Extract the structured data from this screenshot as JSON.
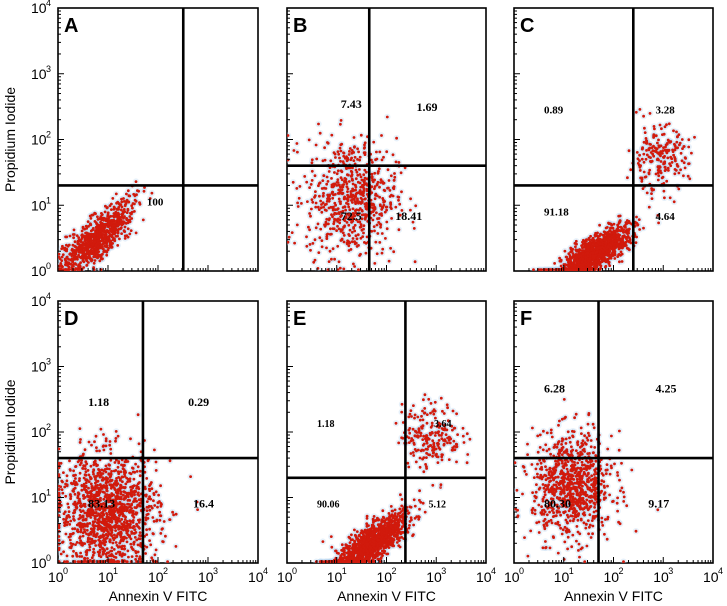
{
  "chart_data": {
    "type": "scatter",
    "figure_note": "Flow cytometry dot plots (2 x 3 grid)",
    "x_axis": {
      "label": "Annexin V FITC",
      "scale": "log",
      "range": [
        1,
        10000
      ],
      "tick_labels": [
        {
          "base": "10",
          "exp": "0"
        },
        {
          "base": "10",
          "exp": "1"
        },
        {
          "base": "10",
          "exp": "2"
        },
        {
          "base": "10",
          "exp": "3"
        },
        {
          "base": "10",
          "exp": "4"
        }
      ]
    },
    "y_axis": {
      "label": "Propidium Iodide",
      "scale": "log",
      "range": [
        1,
        10000
      ],
      "tick_labels": [
        {
          "base": "10",
          "exp": "0"
        },
        {
          "base": "10",
          "exp": "1"
        },
        {
          "base": "10",
          "exp": "2"
        },
        {
          "base": "10",
          "exp": "3"
        },
        {
          "base": "10",
          "exp": "4"
        }
      ]
    },
    "colors": {
      "dots": "#d11a0c",
      "halo": "#b9d7f0",
      "gate": "#000000"
    },
    "panels": [
      {
        "letter": "A",
        "gate_x": 320,
        "gate_y": 20,
        "quadrant_labels": [
          {
            "quadrant": "lower-left",
            "text": "100",
            "x": 60,
            "y": 10,
            "size": 11
          }
        ],
        "clusters": [
          {
            "cx": 6,
            "cy": 3,
            "spread_x": 0.35,
            "spread_y": 0.3,
            "count": 900,
            "shape": "diagonal"
          }
        ]
      },
      {
        "letter": "B",
        "gate_x": 45,
        "gate_y": 40,
        "quadrant_labels": [
          {
            "quadrant": "upper-left",
            "text": "7.43",
            "x": 12,
            "y": 300,
            "size": 12
          },
          {
            "quadrant": "upper-right",
            "text": "1.69",
            "x": 400,
            "y": 270,
            "size": 12
          },
          {
            "quadrant": "lower-left",
            "text": "72.5",
            "x": 12,
            "y": 6,
            "size": 12
          },
          {
            "quadrant": "lower-right",
            "text": "18.41",
            "x": 150,
            "y": 6,
            "size": 12
          }
        ],
        "clusters": [
          {
            "cx": 20,
            "cy": 13,
            "spread_x": 0.45,
            "spread_y": 0.45,
            "count": 700,
            "shape": "round"
          }
        ]
      },
      {
        "letter": "C",
        "gate_x": 250,
        "gate_y": 20,
        "quadrant_labels": [
          {
            "quadrant": "upper-left",
            "text": "0.89",
            "x": 4,
            "y": 250,
            "size": 11
          },
          {
            "quadrant": "upper-right",
            "text": "3.28",
            "x": 700,
            "y": 250,
            "size": 11
          },
          {
            "quadrant": "lower-left",
            "text": "91.18",
            "x": 4,
            "y": 7,
            "size": 11
          },
          {
            "quadrant": "lower-right",
            "text": "4.64",
            "x": 700,
            "y": 6,
            "size": 11
          }
        ],
        "clusters": [
          {
            "cx": 40,
            "cy": 1.8,
            "spread_x": 0.35,
            "spread_y": 0.22,
            "count": 1300,
            "shape": "diagonal"
          },
          {
            "cx": 800,
            "cy": 50,
            "spread_x": 0.3,
            "spread_y": 0.25,
            "count": 220,
            "shape": "round"
          }
        ]
      },
      {
        "letter": "D",
        "gate_x": 50,
        "gate_y": 40,
        "quadrant_labels": [
          {
            "quadrant": "upper-left",
            "text": "1.18",
            "x": 4,
            "y": 250,
            "size": 12
          },
          {
            "quadrant": "upper-right",
            "text": "0.29",
            "x": 400,
            "y": 250,
            "size": 12
          },
          {
            "quadrant": "lower-left",
            "text": "83.13",
            "x": 4,
            "y": 7,
            "size": 12
          },
          {
            "quadrant": "lower-right",
            "text": "16.4",
            "x": 500,
            "y": 7,
            "size": 12
          }
        ],
        "clusters": [
          {
            "cx": 10,
            "cy": 6,
            "spread_x": 0.5,
            "spread_y": 0.45,
            "count": 1400,
            "shape": "round"
          }
        ]
      },
      {
        "letter": "E",
        "gate_x": 240,
        "gate_y": 20,
        "quadrant_labels": [
          {
            "quadrant": "upper-left",
            "text": "1.18",
            "x": 4,
            "y": 120,
            "size": 10
          },
          {
            "quadrant": "upper-right",
            "text": "3.64",
            "x": 900,
            "y": 120,
            "size": 10
          },
          {
            "quadrant": "lower-left",
            "text": "90.06",
            "x": 4,
            "y": 7,
            "size": 10
          },
          {
            "quadrant": "lower-right",
            "text": "5.12",
            "x": 700,
            "y": 7,
            "size": 10
          }
        ],
        "clusters": [
          {
            "cx": 50,
            "cy": 2,
            "spread_x": 0.35,
            "spread_y": 0.25,
            "count": 1300,
            "shape": "diagonal"
          },
          {
            "cx": 800,
            "cy": 90,
            "spread_x": 0.3,
            "spread_y": 0.25,
            "count": 220,
            "shape": "round"
          }
        ]
      },
      {
        "letter": "F",
        "gate_x": 50,
        "gate_y": 40,
        "quadrant_labels": [
          {
            "quadrant": "upper-left",
            "text": "6.28",
            "x": 4,
            "y": 400,
            "size": 12
          },
          {
            "quadrant": "upper-right",
            "text": "4.25",
            "x": 700,
            "y": 400,
            "size": 12
          },
          {
            "quadrant": "lower-left",
            "text": "80.30",
            "x": 4,
            "y": 7,
            "size": 12
          },
          {
            "quadrant": "lower-right",
            "text": "9.17",
            "x": 500,
            "y": 7,
            "size": 12
          }
        ],
        "clusters": [
          {
            "cx": 15,
            "cy": 15,
            "spread_x": 0.4,
            "spread_y": 0.4,
            "count": 900,
            "shape": "round"
          }
        ]
      }
    ]
  }
}
